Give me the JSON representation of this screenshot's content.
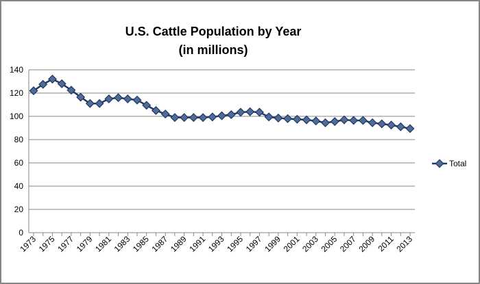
{
  "chart_data": {
    "type": "line",
    "title": "U.S. Cattle Population by Year",
    "subtitle": "(in millions)",
    "xlabel": "",
    "ylabel": "",
    "ylim": [
      0,
      140
    ],
    "yticks": [
      0,
      20,
      40,
      60,
      80,
      100,
      120,
      140
    ],
    "grid": true,
    "legend_position": "right",
    "x": [
      1973,
      1974,
      1975,
      1976,
      1977,
      1978,
      1979,
      1980,
      1981,
      1982,
      1983,
      1984,
      1985,
      1986,
      1987,
      1988,
      1989,
      1990,
      1991,
      1992,
      1993,
      1994,
      1995,
      1996,
      1997,
      1998,
      1999,
      2000,
      2001,
      2002,
      2003,
      2004,
      2005,
      2006,
      2007,
      2008,
      2009,
      2010,
      2011,
      2012,
      2013
    ],
    "xtick_labels": [
      "1973",
      "1975",
      "1977",
      "1979",
      "1981",
      "1983",
      "1985",
      "1987",
      "1989",
      "1991",
      "1993",
      "1995",
      "1997",
      "1999",
      "2001",
      "2003",
      "2005",
      "2007",
      "2009",
      "2011",
      "2013"
    ],
    "series": [
      {
        "name": "Total",
        "color": "#1F3864",
        "marker_fill": "#4F6B96",
        "values": [
          122,
          127.5,
          132,
          128,
          122.5,
          116.5,
          111,
          111,
          115,
          116,
          115,
          114,
          109.5,
          105,
          102,
          99,
          99,
          99,
          99,
          99.5,
          100.5,
          101.5,
          103.5,
          104,
          103.5,
          99.5,
          98.5,
          98,
          97.5,
          97,
          96,
          94.5,
          95.5,
          97,
          96.5,
          96.5,
          94.5,
          93.5,
          92.5,
          91,
          89.5
        ]
      }
    ]
  }
}
